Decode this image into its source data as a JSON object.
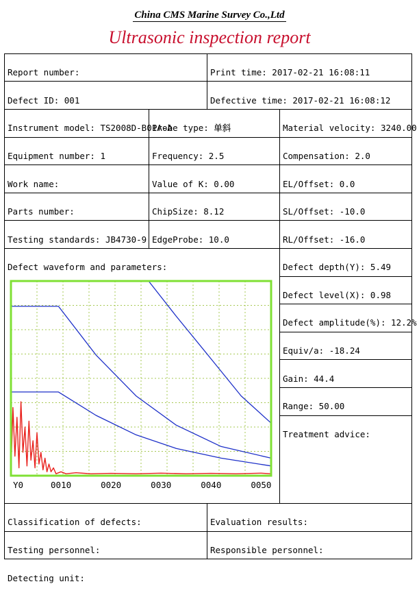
{
  "header": {
    "company": "China CMS Marine Survey Co.,Ltd",
    "title": "Ultrasonic inspection report"
  },
  "report": {
    "report_number": "Report number:",
    "print_time": "Print time: 2017-02-21 16:08:11",
    "defect_id": "Defect ID: 001",
    "defective_time": "Defective time: 2017-02-21 16:08:12",
    "instrument_model": "Instrument model: TS2008D-B01A-A",
    "probe_type": "Probe type: 单斜",
    "material_velocity": "Material velocity: 3240.00",
    "equipment_number": "Equipment number: 1",
    "frequency": "Frequency: 2.5",
    "compensation": "Compensation: 2.0",
    "work_name": "Work name:",
    "value_of_k": "Value of K: 0.00",
    "el_offset": "EL/Offset: 0.0",
    "parts_number": "Parts number:",
    "chipsize": "ChipSize: 8.12",
    "sl_offset": "SL/Offset: -10.0",
    "testing_standards": "Testing standards: JB4730-9",
    "edgeprobe": "EdgeProbe: 10.0",
    "rl_offset": "RL/Offset: -16.0",
    "waveform_label": "Defect waveform and parameters:",
    "defect_depth": "Defect depth(Y): 5.49",
    "defect_level": "Defect level(X): 0.98",
    "defect_amplitude": "Defect amplitude(%): 12.2%",
    "equiv": "Equiv/a: -18.24",
    "gain": "Gain: 44.4",
    "range": "Range: 50.00",
    "treatment_advice": "Treatment advice:",
    "classification": "Classification of defects:",
    "evaluation": "Evaluation results:",
    "testing_personnel": "Testing personnel:",
    "responsible_personnel": "Responsible personnel:",
    "detecting_unit": "Detecting unit:"
  },
  "colors": {
    "title_red": "#c8102e",
    "frame_green": "#7fe034",
    "grid_green": "#a6c850",
    "curve_blue": "#1c2fc8",
    "echo_red": "#e8201c"
  },
  "chart_data": {
    "type": "line",
    "x_ticks": [
      "Y0",
      "0010",
      "0020",
      "0030",
      "0040",
      "0050"
    ],
    "xlim": [
      0,
      52
    ],
    "ylim": [
      0,
      100
    ],
    "series": [
      {
        "kind": "curve",
        "points": [
          [
            0,
            100
          ],
          [
            27.5,
            100
          ],
          [
            33,
            82
          ],
          [
            40,
            60
          ],
          [
            46,
            41
          ],
          [
            52,
            27
          ]
        ]
      },
      {
        "kind": "curve",
        "points": [
          [
            0,
            87
          ],
          [
            9.5,
            87
          ],
          [
            17,
            62
          ],
          [
            25,
            41
          ],
          [
            33,
            26
          ],
          [
            42,
            15
          ],
          [
            52,
            9
          ]
        ]
      },
      {
        "kind": "curve",
        "points": [
          [
            0,
            43
          ],
          [
            9.5,
            43
          ],
          [
            17,
            31
          ],
          [
            25,
            21
          ],
          [
            33,
            14
          ],
          [
            42,
            9
          ],
          [
            52,
            5
          ]
        ]
      },
      {
        "kind": "echo",
        "points": [
          [
            0,
            2
          ],
          [
            0.4,
            35
          ],
          [
            0.8,
            10
          ],
          [
            1.2,
            30
          ],
          [
            1.6,
            4
          ],
          [
            2.0,
            38
          ],
          [
            2.4,
            12
          ],
          [
            2.8,
            25
          ],
          [
            3.2,
            5
          ],
          [
            3.6,
            28
          ],
          [
            4.0,
            8
          ],
          [
            4.4,
            18
          ],
          [
            4.8,
            4
          ],
          [
            5.2,
            22
          ],
          [
            5.6,
            6
          ],
          [
            6.0,
            12
          ],
          [
            6.4,
            3
          ],
          [
            6.8,
            9
          ],
          [
            7.2,
            2
          ],
          [
            7.6,
            6
          ],
          [
            8.0,
            2
          ],
          [
            8.5,
            4
          ],
          [
            9.0,
            1
          ],
          [
            10,
            2
          ],
          [
            11,
            1
          ],
          [
            13,
            1.5
          ],
          [
            16,
            1
          ],
          [
            20,
            1.2
          ],
          [
            25,
            1
          ],
          [
            30,
            1.3
          ],
          [
            35,
            1
          ],
          [
            40,
            1.2
          ],
          [
            45,
            1
          ],
          [
            50,
            1.3
          ],
          [
            52,
            1
          ]
        ]
      }
    ]
  }
}
